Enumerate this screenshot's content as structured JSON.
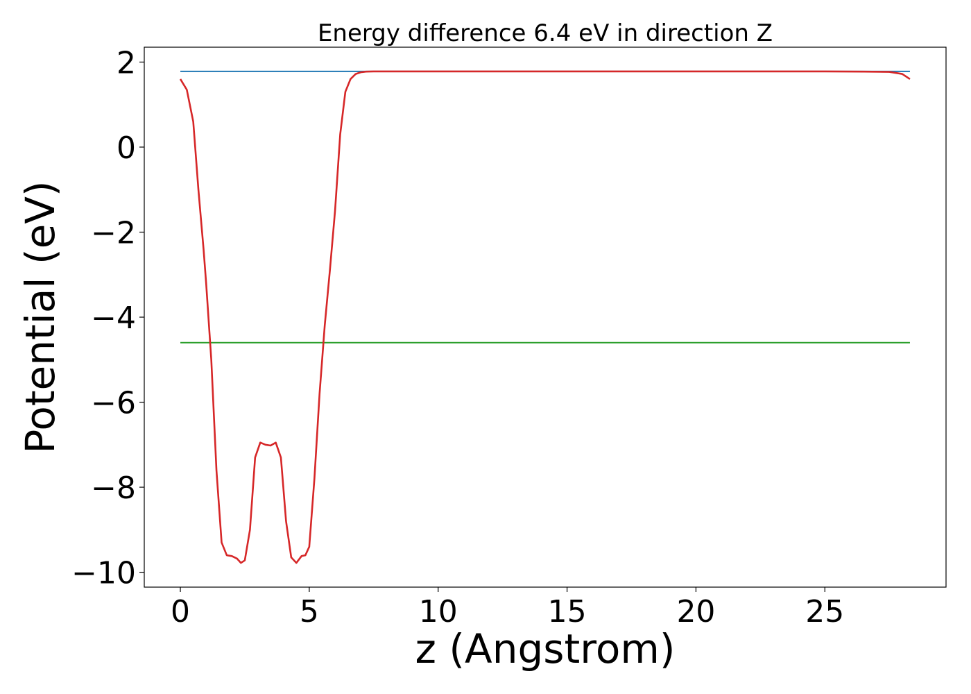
{
  "chart_data": {
    "type": "line",
    "title": "Energy difference 6.4 eV in direction Z",
    "xlabel": "z (Angstrom)",
    "ylabel": "Potential (eV)",
    "xlim": [
      -1.4,
      29.7
    ],
    "ylim": [
      -10.35,
      2.35
    ],
    "x_ticks": [
      0,
      5,
      10,
      15,
      20,
      25
    ],
    "x_tick_labels": [
      "0",
      "5",
      "10",
      "15",
      "20",
      "25"
    ],
    "y_ticks": [
      2,
      0,
      -2,
      -4,
      -6,
      -8,
      -10
    ],
    "y_tick_labels": [
      "2",
      "0",
      "−2",
      "−4",
      "−6",
      "−8",
      "−10"
    ],
    "grid": false,
    "legend": "none",
    "series": [
      {
        "color": "#1f77b4",
        "x": [
          0,
          28.3
        ],
        "y": [
          1.78,
          1.78
        ]
      },
      {
        "color": "#2ca02c",
        "x": [
          0,
          28.3
        ],
        "y": [
          -4.6,
          -4.6
        ]
      },
      {
        "color": "#d62728",
        "x": [
          0,
          0.25,
          0.5,
          0.7,
          0.9,
          1.0,
          1.2,
          1.4,
          1.6,
          1.8,
          2.0,
          2.2,
          2.35,
          2.5,
          2.7,
          2.9,
          3.1,
          3.3,
          3.5,
          3.7,
          3.9,
          4.1,
          4.3,
          4.5,
          4.7,
          4.85,
          5.0,
          5.2,
          5.4,
          5.6,
          5.8,
          6.0,
          6.2,
          6.4,
          6.6,
          6.8,
          7.0,
          7.2,
          7.5,
          8.0,
          9.0,
          10,
          15,
          20,
          25,
          26.5,
          27.5,
          28.0,
          28.3
        ],
        "y": [
          1.6,
          1.35,
          0.6,
          -1.0,
          -2.4,
          -3.2,
          -5.0,
          -7.6,
          -9.3,
          -9.6,
          -9.62,
          -9.68,
          -9.78,
          -9.72,
          -9.0,
          -7.3,
          -6.95,
          -7.0,
          -7.02,
          -6.95,
          -7.3,
          -8.8,
          -9.65,
          -9.78,
          -9.62,
          -9.6,
          -9.4,
          -7.8,
          -5.8,
          -4.2,
          -2.9,
          -1.5,
          0.3,
          1.3,
          1.6,
          1.72,
          1.76,
          1.775,
          1.78,
          1.78,
          1.78,
          1.78,
          1.78,
          1.78,
          1.78,
          1.775,
          1.77,
          1.72,
          1.6
        ]
      }
    ]
  }
}
